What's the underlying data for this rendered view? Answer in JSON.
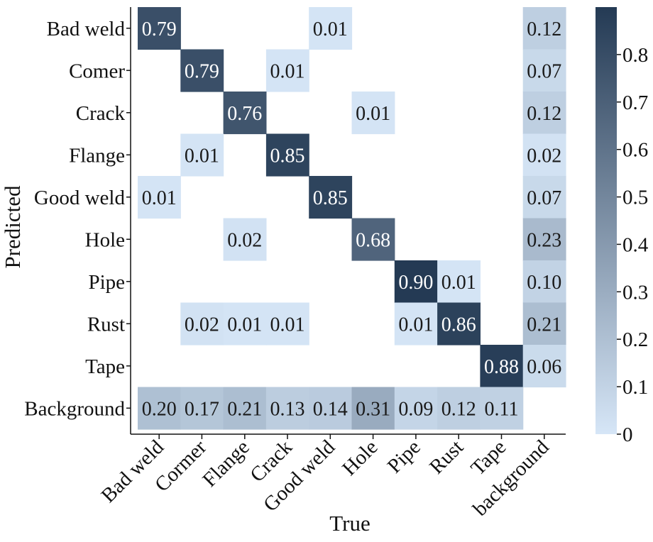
{
  "chart_data": {
    "type": "heatmap",
    "title": "",
    "xlabel": "True",
    "ylabel": "Predicted",
    "rows": [
      "Bad weld",
      "Comer",
      "Crack",
      "Flange",
      "Good weld",
      "Hole",
      "Pipe",
      "Rust",
      "Tape",
      "Background"
    ],
    "columns": [
      "Bad weld",
      "Cormer",
      "Flange",
      "Crack",
      "Good weld",
      "Hole",
      "Pipe",
      "Rust",
      "Tape",
      "background"
    ],
    "values": [
      [
        0.79,
        null,
        null,
        null,
        0.01,
        null,
        null,
        null,
        null,
        0.12
      ],
      [
        null,
        0.79,
        null,
        0.01,
        null,
        null,
        null,
        null,
        null,
        0.07
      ],
      [
        null,
        null,
        0.76,
        null,
        null,
        0.01,
        null,
        null,
        null,
        0.12
      ],
      [
        null,
        0.01,
        null,
        0.85,
        null,
        null,
        null,
        null,
        null,
        0.02
      ],
      [
        0.01,
        null,
        null,
        null,
        0.85,
        null,
        null,
        null,
        null,
        0.07
      ],
      [
        null,
        null,
        0.02,
        null,
        null,
        0.68,
        null,
        null,
        null,
        0.23
      ],
      [
        null,
        null,
        null,
        null,
        null,
        null,
        0.9,
        0.01,
        null,
        0.1
      ],
      [
        null,
        0.02,
        0.01,
        0.01,
        null,
        null,
        0.01,
        0.86,
        null,
        0.21
      ],
      [
        null,
        null,
        null,
        null,
        null,
        null,
        null,
        null,
        0.88,
        0.06
      ],
      [
        0.2,
        0.17,
        0.21,
        0.13,
        0.14,
        0.31,
        0.09,
        0.12,
        0.11,
        null
      ]
    ],
    "value_labels": [
      [
        "0.79",
        "",
        "",
        "",
        "0.01",
        "",
        "",
        "",
        "",
        "0.12"
      ],
      [
        "",
        "0.79",
        "",
        "0.01",
        "",
        "",
        "",
        "",
        "",
        "0.07"
      ],
      [
        "",
        "",
        "0.76",
        "",
        "",
        "0.01",
        "",
        "",
        "",
        "0.12"
      ],
      [
        "",
        "0.01",
        "",
        "0.85",
        "",
        "",
        "",
        "",
        "",
        "0.02"
      ],
      [
        "0.01",
        "",
        "",
        "",
        "0.85",
        "",
        "",
        "",
        "",
        "0.07"
      ],
      [
        "",
        "",
        "0.02",
        "",
        "",
        "0.68",
        "",
        "",
        "",
        "0.23"
      ],
      [
        "",
        "",
        "",
        "",
        "",
        "",
        "0.90",
        "0.01",
        "",
        "0.10"
      ],
      [
        "",
        "0.02",
        "0.01",
        "0.01",
        "",
        "",
        "0.01",
        "0.86",
        "",
        "0.21"
      ],
      [
        "",
        "",
        "",
        "",
        "",
        "",
        "",
        "",
        "0.88",
        "0.06"
      ],
      [
        "0.20",
        "0.17",
        "0.21",
        "0.13",
        "0.14",
        "0.31",
        "0.09",
        "0.12",
        "0.11",
        ""
      ]
    ],
    "colorbar": {
      "range": [
        0,
        0.9
      ],
      "ticks": [
        0,
        0.1,
        0.2,
        0.3,
        0.4,
        0.5,
        0.6,
        0.7,
        0.8
      ],
      "tick_labels": [
        "0",
        "0.1",
        "0.2",
        "0.3",
        "0.4",
        "0.5",
        "0.6",
        "0.7",
        "0.8"
      ],
      "color_low": "#d6e6f7",
      "color_high": "#243a54"
    },
    "text_color_dark_cells": "#ffffff",
    "text_color_light_cells": "#1a1a1a",
    "grid": false
  }
}
